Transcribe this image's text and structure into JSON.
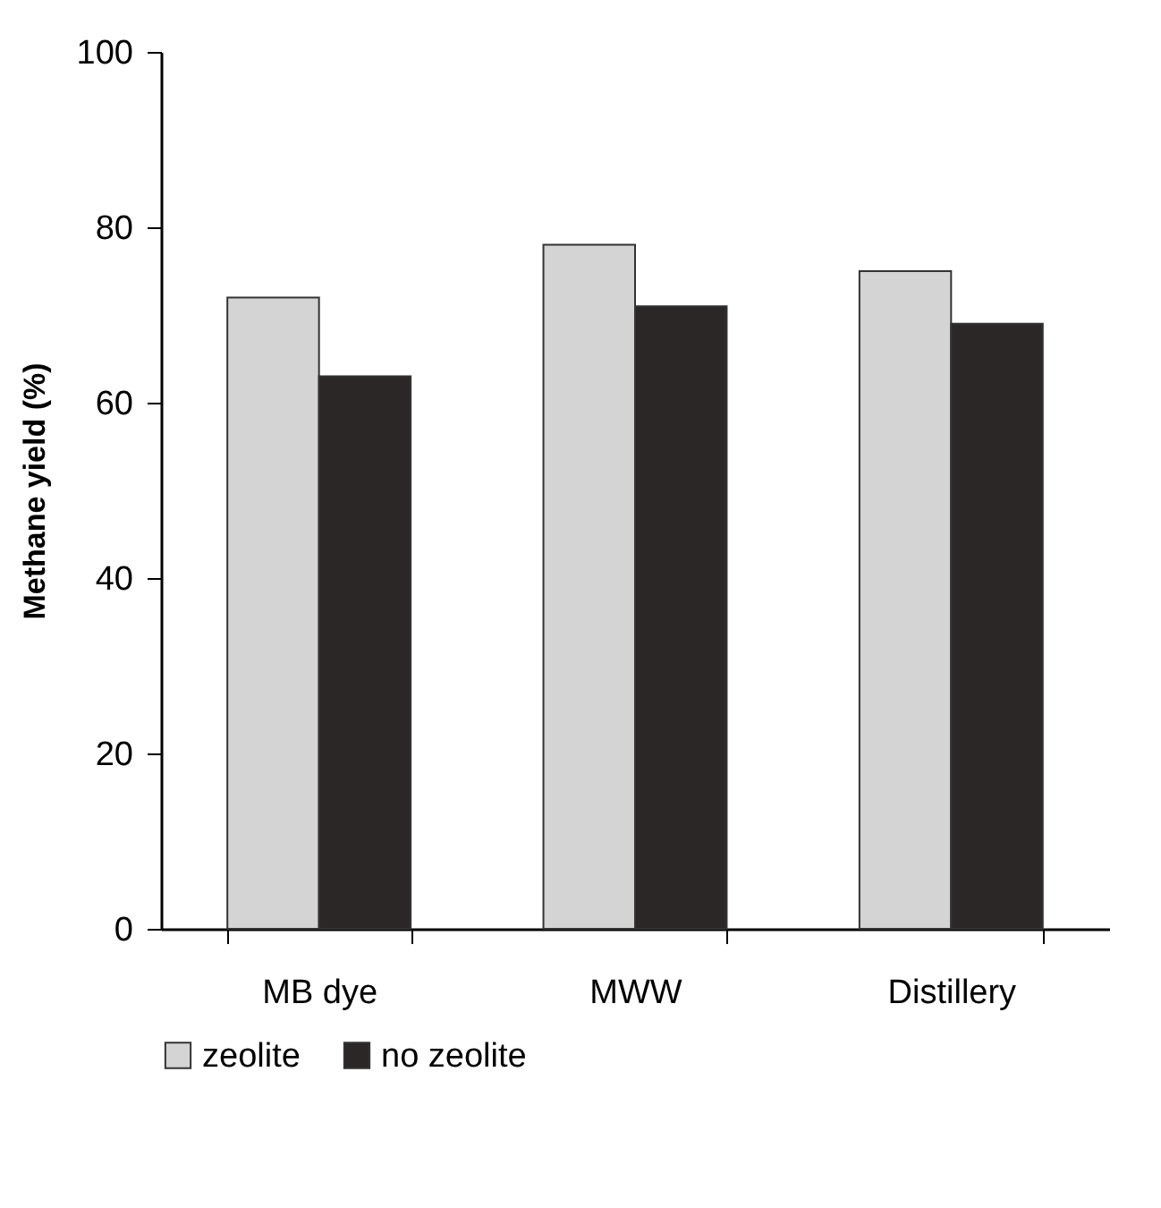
{
  "chart_data": {
    "type": "bar",
    "ylabel": "Methane yield (%)",
    "categories": [
      "MB dye",
      "MWW",
      "Distillery"
    ],
    "series": [
      {
        "name": "zeolite",
        "color": "#d4d4d4",
        "values": [
          72,
          78,
          75
        ]
      },
      {
        "name": "no zeolite",
        "color": "#2b2727",
        "values": [
          63,
          71,
          69
        ]
      }
    ],
    "ylim": [
      0,
      100
    ],
    "yticks": [
      0,
      20,
      40,
      60,
      80,
      100
    ],
    "grid": false,
    "legend": "bottom"
  }
}
